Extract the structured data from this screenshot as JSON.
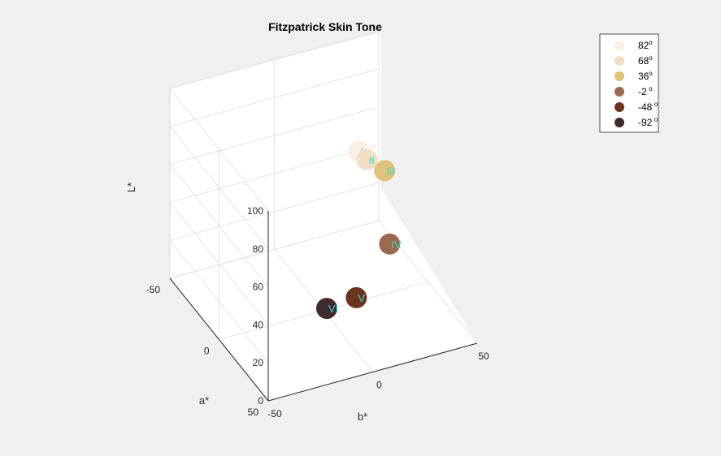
{
  "chart_data": {
    "type": "scatter",
    "title": "Fitzpatrick Skin Tone",
    "xlabel": "b*",
    "ylabel": "a*",
    "zlabel": "L*",
    "xlim": [
      -50,
      50
    ],
    "ylim": [
      -50,
      50
    ],
    "zlim": [
      0,
      100
    ],
    "x_ticks": [
      "-50",
      "0",
      "50"
    ],
    "y_ticks": [
      "-50",
      "0",
      "50"
    ],
    "z_ticks": [
      "0",
      "20",
      "40",
      "60",
      "80",
      "100"
    ],
    "grid": true,
    "legend_position": "top-right",
    "degree_symbol": "o",
    "series": [
      {
        "name": "82",
        "label": "I",
        "b": 15,
        "a": 4,
        "L": 82,
        "color": "#f9efe4"
      },
      {
        "name": "68",
        "label": "II",
        "b": 18,
        "a": 6,
        "L": 78,
        "color": "#f1dfc6"
      },
      {
        "name": "36",
        "label": "III",
        "b": 25,
        "a": 9,
        "L": 72,
        "color": "#e0c27a"
      },
      {
        "name": "-2",
        "label": "IV",
        "b": 26,
        "a": 12,
        "L": 35,
        "color": "#9a6a4e"
      },
      {
        "name": "-48",
        "label": "V",
        "b": 11,
        "a": 10,
        "L": 10,
        "color": "#6b3421"
      },
      {
        "name": "-92",
        "label": "VI",
        "b": 2,
        "a": -1,
        "L": 0,
        "color": "#3f2a2e"
      }
    ]
  }
}
